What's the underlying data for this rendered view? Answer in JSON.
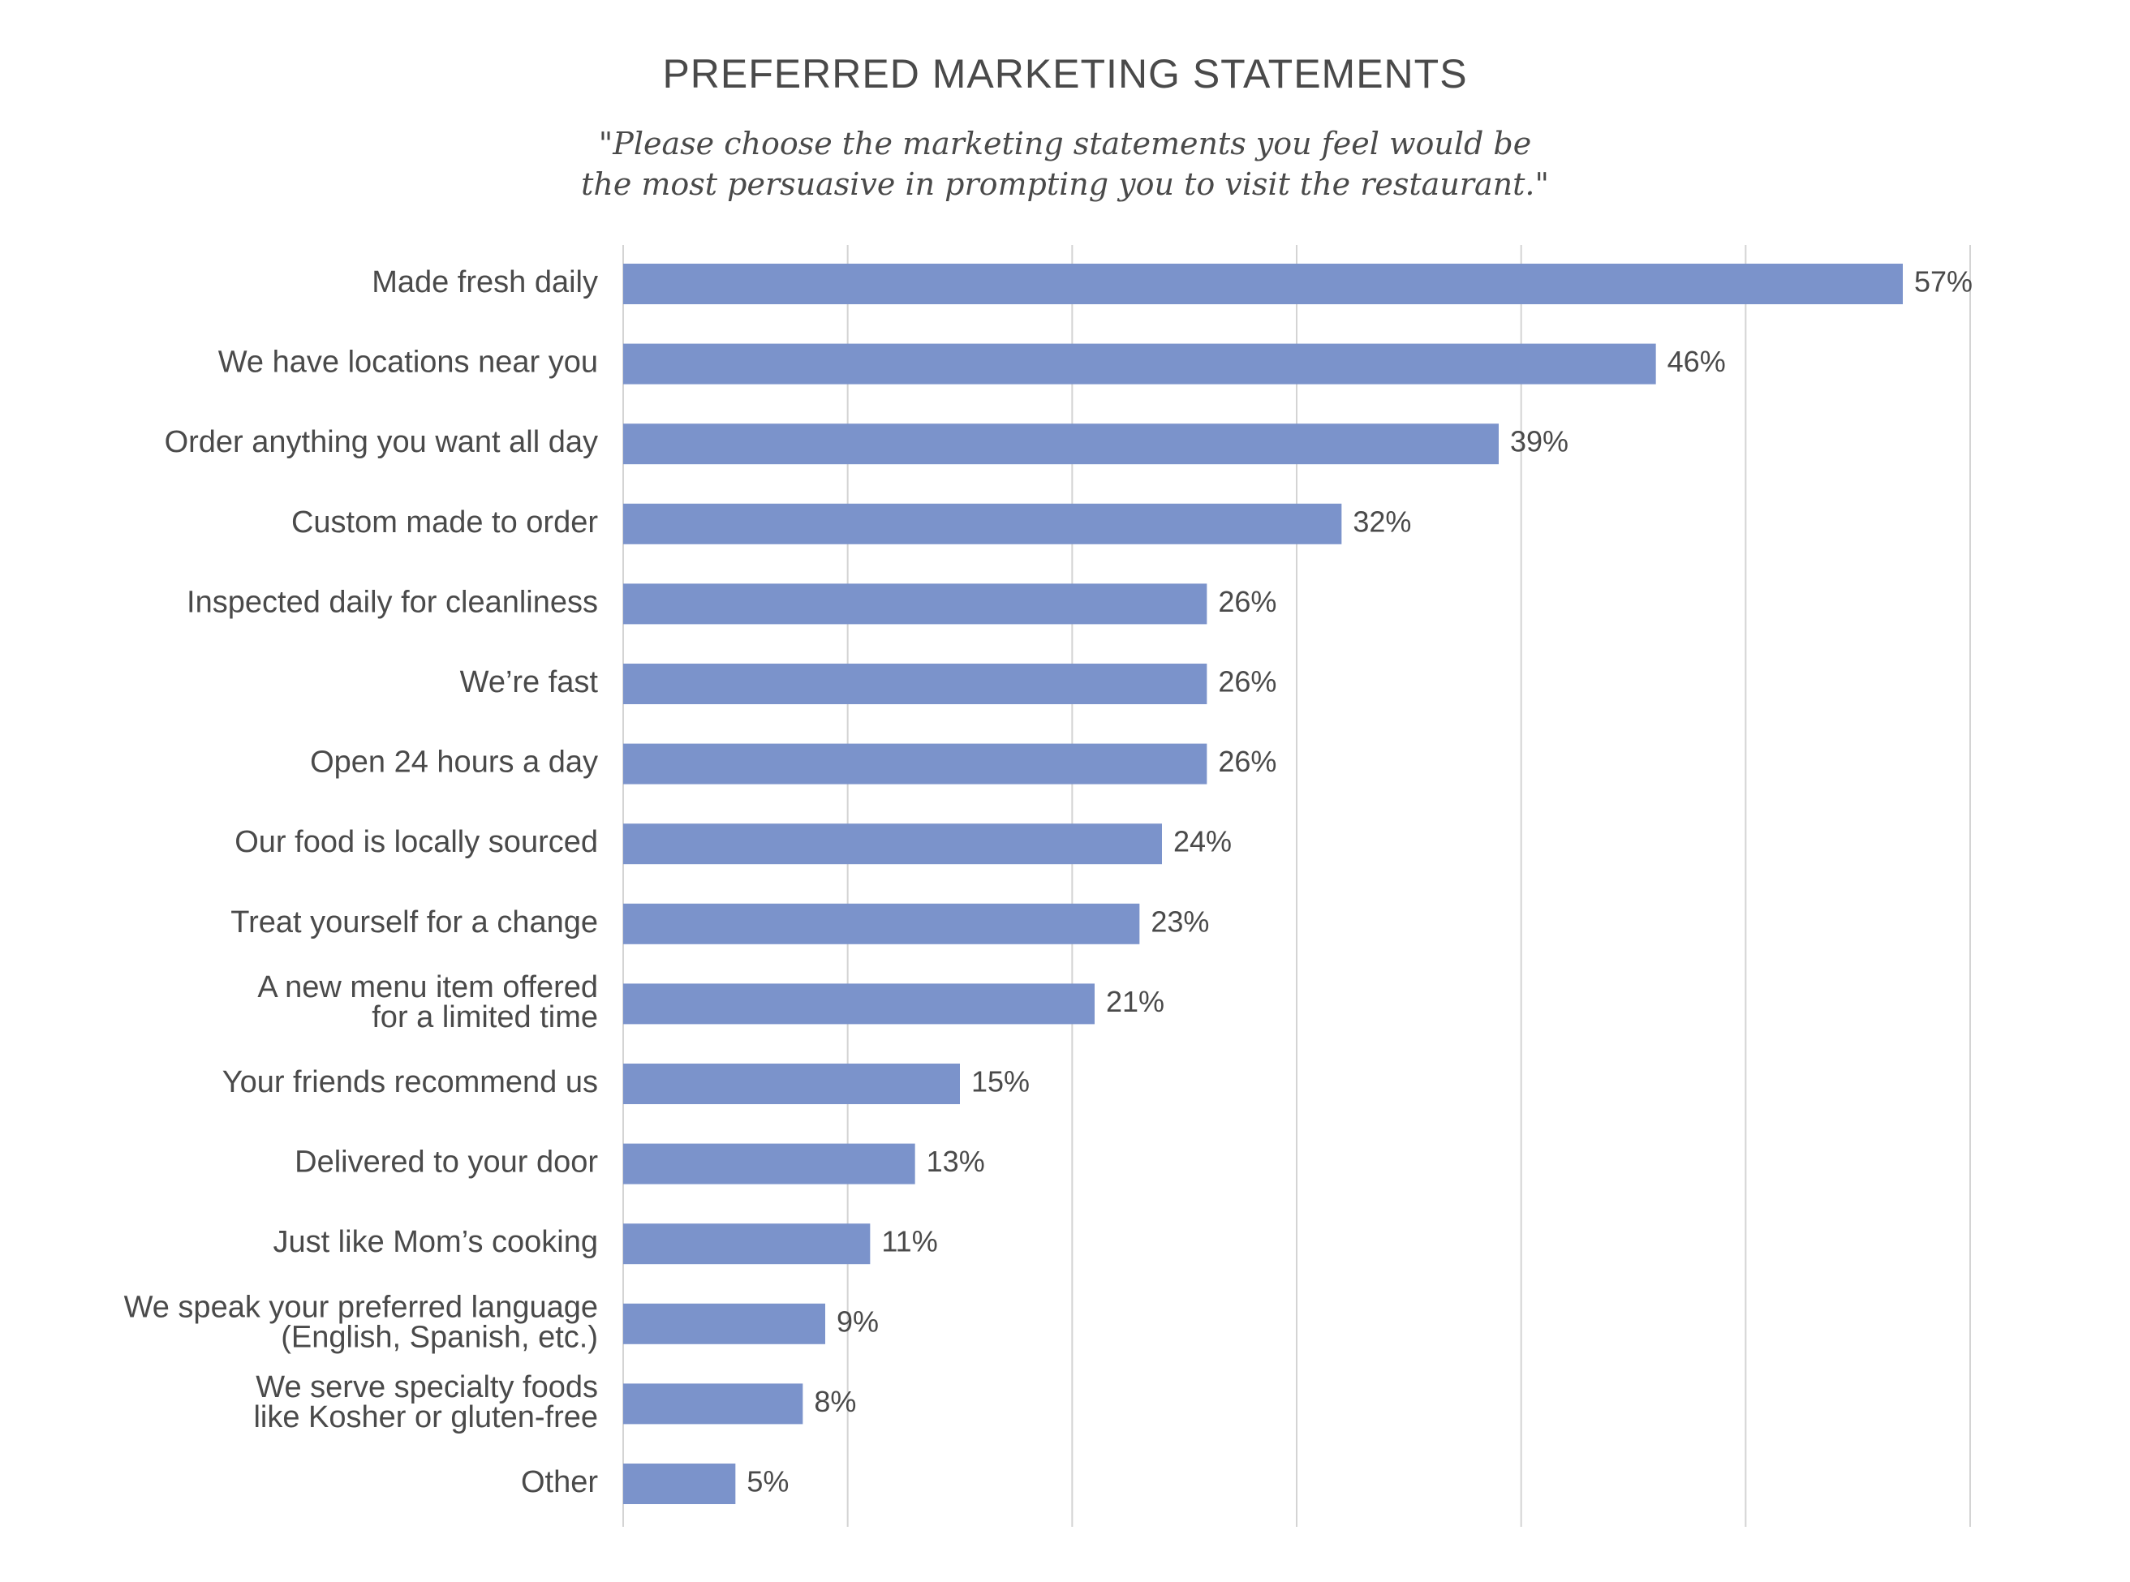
{
  "chart_data": {
    "type": "bar",
    "orientation": "horizontal",
    "title": "PREFERRED MARKETING STATEMENTS",
    "subtitle_lines": [
      "\"Please choose the marketing statements you feel would be",
      "the most persuasive in prompting you to visit the restaurant.\""
    ],
    "categories": [
      [
        "Made fresh daily"
      ],
      [
        "We have locations near you"
      ],
      [
        "Order anything you want all day"
      ],
      [
        "Custom made to order"
      ],
      [
        "Inspected daily for cleanliness"
      ],
      [
        "We’re fast"
      ],
      [
        "Open 24 hours a day"
      ],
      [
        "Our food is locally sourced"
      ],
      [
        "Treat yourself for a change"
      ],
      [
        "A new menu item offered",
        "for a limited time"
      ],
      [
        "Your friends recommend us"
      ],
      [
        "Delivered to your door"
      ],
      [
        "Just like Mom’s cooking"
      ],
      [
        "We speak your preferred language",
        "(English, Spanish, etc.)"
      ],
      [
        "We serve specialty foods",
        "like Kosher or gluten-free"
      ],
      [
        "Other"
      ]
    ],
    "values": [
      57,
      46,
      39,
      32,
      26,
      26,
      26,
      24,
      23,
      21,
      15,
      13,
      11,
      9,
      8,
      5
    ],
    "value_labels": [
      "57%",
      "46%",
      "39%",
      "32%",
      "26%",
      "26%",
      "26%",
      "24%",
      "23%",
      "21%",
      "15%",
      "13%",
      "11%",
      "9%",
      "8%",
      "5%"
    ],
    "xlim": [
      0,
      60
    ],
    "x_gridlines": [
      0,
      10,
      20,
      30,
      40,
      50,
      60
    ],
    "grid": true,
    "bar_color": "#7b93cb",
    "grid_color": "#d4d4d4"
  }
}
